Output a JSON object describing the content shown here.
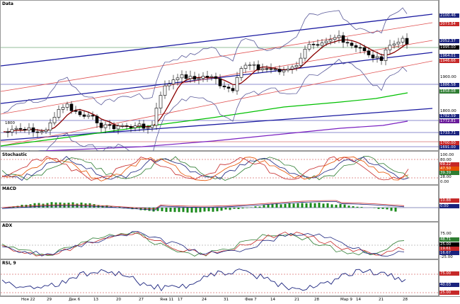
{
  "panels": {
    "price": {
      "title": "Data"
    },
    "stoch": {
      "title": "Stochastic"
    },
    "macd": {
      "title": "MACD"
    },
    "adx": {
      "title": "ADX"
    },
    "rsi": {
      "title": "RSI, 9"
    }
  },
  "price_axis": {
    "labels": [
      "1900.00",
      "1800.00"
    ],
    "tags": [
      {
        "text": "2100.46",
        "color": "#1a237e"
      },
      {
        "text": "2073.84",
        "color": "#c62828"
      },
      {
        "text": "2052.37",
        "color": "#1a237e"
      },
      {
        "text": "1995.00",
        "color": "#000000"
      },
      {
        "text": "1964.01",
        "color": "#1a237e"
      },
      {
        "text": "1946.66",
        "color": "#c62828"
      },
      {
        "text": "1886.58",
        "color": "#1a237e"
      },
      {
        "text": "1858.08",
        "color": "#2e7d32"
      },
      {
        "text": "1782.59",
        "color": "#1a237e"
      },
      {
        "text": "1772.81",
        "color": "#6a1b9a"
      },
      {
        "text": "1733.71",
        "color": "#1a237e"
      },
      {
        "text": "1700.00",
        "color": "#c62828"
      },
      {
        "text": "1691.00",
        "color": "#1a237e"
      }
    ],
    "left_label": "1800"
  },
  "stoch_axis": {
    "labels": [
      "100.00",
      "80.00",
      "28.00",
      "0.00"
    ],
    "tags": [
      {
        "text": "69.22",
        "color": "#c62828"
      },
      {
        "text": "47.50",
        "color": "#e65100"
      },
      {
        "text": "39.39",
        "color": "#2e7d32"
      }
    ]
  },
  "macd_axis": {
    "tags": [
      {
        "text": "10.88",
        "color": "#c62828"
      },
      {
        "text": "0.00",
        "color": "#1a237e"
      }
    ]
  },
  "adx_axis": {
    "labels": [
      "75.00",
      "-25.00"
    ],
    "tags": [
      {
        "text": "48.71",
        "color": "#2e7d32"
      },
      {
        "text": "25.00",
        "color": "#000000"
      },
      {
        "text": "19.61",
        "color": "#c62828"
      },
      {
        "text": "16.67",
        "color": "#1a237e"
      }
    ]
  },
  "rsi_axis": {
    "tags": [
      {
        "text": "75.00",
        "color": "#c62828"
      },
      {
        "text": "40.03",
        "color": "#1a237e"
      },
      {
        "text": "25.00",
        "color": "#c62828"
      }
    ]
  },
  "x_axis": {
    "labels": [
      "Ноя 22",
      "29",
      "Дек 6",
      "13",
      "20",
      "27",
      "Янв 11",
      "17",
      "24",
      "31",
      "Фев 7",
      "14",
      "21",
      "28",
      "Мар 9",
      "14",
      "21",
      "28"
    ]
  },
  "colors": {
    "up_candle": "#ffffff",
    "down_candle": "#000000",
    "ma": "#8b0000",
    "channel_blue": "#1a1aa0",
    "channel_red": "#e05050",
    "bollinger": "#5a5a9a",
    "green_line": "#00c000",
    "purple_line": "#7a20c0"
  }
}
